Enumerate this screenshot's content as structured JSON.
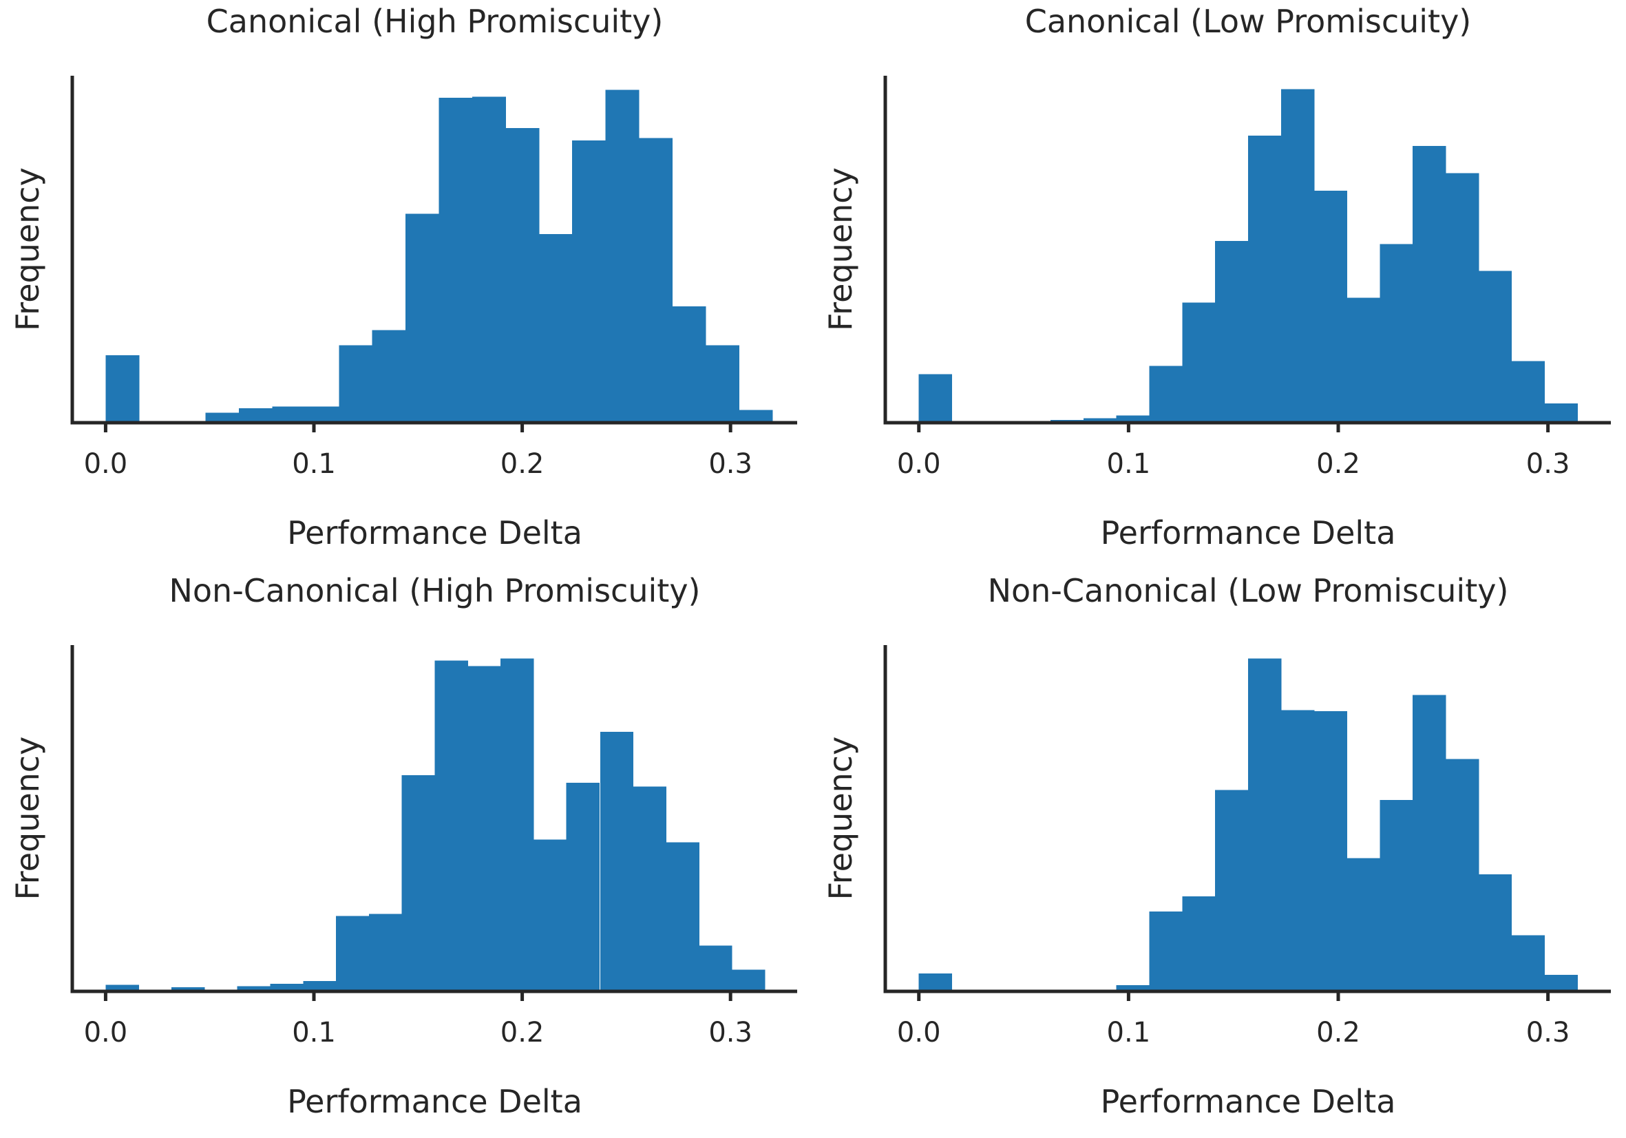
{
  "chart_data": [
    {
      "type": "bar",
      "title": "Canonical (High Promiscuity)",
      "xlabel": "Performance Delta",
      "ylabel": "Frequency",
      "color": "#2077b4",
      "bin_width": 0.016,
      "bin_starts": [
        0.0,
        0.016,
        0.032,
        0.048,
        0.064,
        0.08,
        0.096,
        0.112,
        0.128,
        0.144,
        0.16,
        0.176,
        0.192,
        0.208,
        0.224,
        0.24,
        0.256,
        0.272,
        0.288,
        0.304
      ],
      "values": [
        20,
        0,
        0.4,
        3,
        4.3,
        4.8,
        4.8,
        23,
        27.5,
        62,
        96.5,
        96.8,
        87.5,
        56,
        83.8,
        98.8,
        84.5,
        34.5,
        23,
        3.8
      ],
      "xlim": [
        -0.016,
        0.332
      ],
      "ylim": [
        0,
        103
      ],
      "xticks": [
        "0.0",
        "0.1",
        "0.2",
        "0.3"
      ],
      "xtick_values": [
        0.0,
        0.1,
        0.2,
        0.3
      ],
      "grid": false,
      "yticks_shown": false
    },
    {
      "type": "bar",
      "title": "Canonical (Low Promiscuity)",
      "xlabel": "Performance Delta",
      "ylabel": "Frequency",
      "color": "#2077b4",
      "bin_width": 0.0157,
      "bin_starts": [
        0.0,
        0.0157,
        0.0314,
        0.0471,
        0.0628,
        0.0785,
        0.0942,
        0.1099,
        0.1256,
        0.1413,
        0.157,
        0.1727,
        0.1884,
        0.2041,
        0.2198,
        0.2355,
        0.2512,
        0.2669,
        0.2826,
        0.2983
      ],
      "values": [
        14.5,
        0,
        0,
        0.5,
        0.8,
        1.3,
        2.2,
        17,
        36,
        54.5,
        86,
        100,
        69.5,
        37.5,
        53.5,
        83,
        74.8,
        45.5,
        18.5,
        5.8
      ],
      "xlim": [
        -0.016,
        0.33
      ],
      "ylim": [
        0,
        104
      ],
      "xticks": [
        "0.0",
        "0.1",
        "0.2",
        "0.3"
      ],
      "xtick_values": [
        0.0,
        0.1,
        0.2,
        0.3
      ],
      "grid": false,
      "yticks_shown": false
    },
    {
      "type": "bar",
      "title": "Non-Canonical (High Promiscuity)",
      "xlabel": "Performance Delta",
      "ylabel": "Frequency",
      "color": "#2077b4",
      "bin_width": 0.0158,
      "bin_starts": [
        0.0,
        0.0158,
        0.0316,
        0.0474,
        0.0632,
        0.079,
        0.0948,
        0.1106,
        0.1264,
        0.1422,
        0.158,
        0.1738,
        0.1896,
        0.2054,
        0.2212,
        0.2374,
        0.2532,
        0.269,
        0.2848,
        0.3006
      ],
      "values": [
        2,
        0.4,
        1.2,
        0.4,
        1.6,
        2.3,
        3.1,
        22.6,
        23.3,
        64.9,
        99.3,
        97.7,
        100,
        45.6,
        62.6,
        77.9,
        61.5,
        44.8,
        13.8,
        6.5
      ],
      "xlim": [
        -0.016,
        0.332
      ],
      "ylim": [
        0,
        104
      ],
      "xticks": [
        "0.0",
        "0.1",
        "0.2",
        "0.3"
      ],
      "xtick_values": [
        0.0,
        0.1,
        0.2,
        0.3
      ],
      "grid": false,
      "yticks_shown": false
    },
    {
      "type": "bar",
      "title": "Non-Canonical (Low Promiscuity)",
      "xlabel": "Performance Delta",
      "ylabel": "Frequency",
      "color": "#2077b4",
      "bin_width": 0.0157,
      "bin_starts": [
        0.0,
        0.0157,
        0.0314,
        0.0471,
        0.0628,
        0.0785,
        0.0942,
        0.1099,
        0.1256,
        0.1413,
        0.157,
        0.1727,
        0.1884,
        0.2041,
        0.2198,
        0.2355,
        0.2512,
        0.2669,
        0.2826,
        0.2983
      ],
      "values": [
        5.4,
        0,
        0,
        0,
        0,
        0.5,
        1.9,
        24,
        28.5,
        60.5,
        100,
        84.5,
        84.1,
        40,
        57.5,
        89,
        69.8,
        35.1,
        16.8,
        5
      ],
      "xlim": [
        -0.016,
        0.33
      ],
      "ylim": [
        0,
        104
      ],
      "xticks": [
        "0.0",
        "0.1",
        "0.2",
        "0.3"
      ],
      "xtick_values": [
        0.0,
        0.1,
        0.2,
        0.3
      ],
      "grid": false,
      "yticks_shown": false
    }
  ]
}
